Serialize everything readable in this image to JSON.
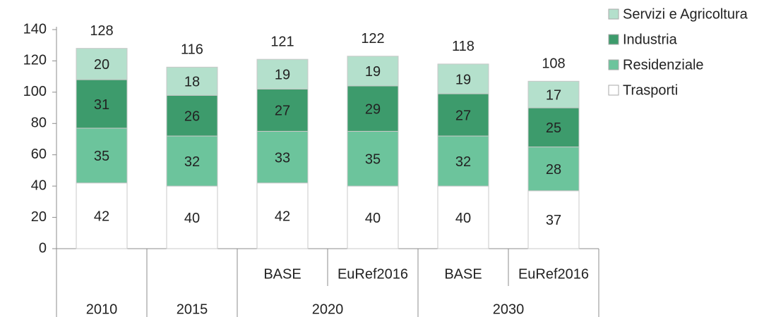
{
  "chart_data": {
    "type": "stacked_bar",
    "groups": [
      {
        "label": "2010",
        "categories": [
          null
        ]
      },
      {
        "label": "2015",
        "categories": [
          null
        ]
      },
      {
        "label": "2020",
        "categories": [
          "BASE",
          "EuRef2016"
        ]
      },
      {
        "label": "2030",
        "categories": [
          "BASE",
          "EuRef2016"
        ]
      }
    ],
    "series": [
      {
        "name": "Trasporti",
        "color": "#ffffff",
        "values": [
          42,
          40,
          42,
          40,
          40,
          37
        ]
      },
      {
        "name": "Residenziale",
        "color": "#6cc49c",
        "values": [
          35,
          32,
          33,
          35,
          32,
          28
        ]
      },
      {
        "name": "Industria",
        "color": "#3d9b6c",
        "values": [
          31,
          26,
          27,
          29,
          27,
          25
        ]
      },
      {
        "name": "Servizi e Agricoltura",
        "color": "#b4e0cc",
        "values": [
          20,
          18,
          19,
          19,
          19,
          17
        ]
      }
    ],
    "totals": [
      128,
      116,
      121,
      122,
      118,
      108
    ],
    "ylim": [
      0,
      140
    ],
    "yticks": [
      0,
      20,
      40,
      60,
      80,
      100,
      120,
      140
    ],
    "grid": false,
    "legend": "right"
  }
}
